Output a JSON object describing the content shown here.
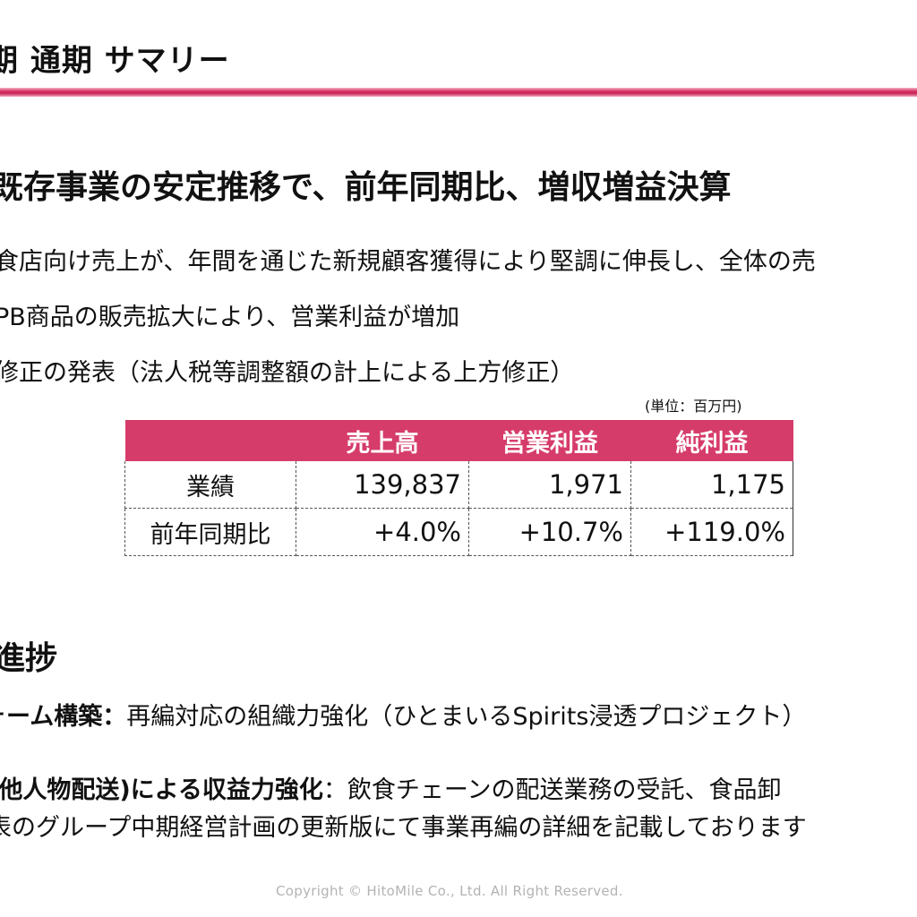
{
  "header": {
    "title": "期 通期 サマリー",
    "rule_color": "#d63c6a"
  },
  "summary": {
    "headline": "既存事業の安定推移で、前年同期比、増収増益決算",
    "bullets": [
      "食店向け売上が、年間を通じた新規顧客獲得により堅調に伸長し、全体の売",
      "PB商品の販売拡大により、営業利益が増加",
      "修正の発表（法人税等調整額の計上による上方修正）"
    ]
  },
  "results_table": {
    "unit_note": "(単位：百万円)",
    "header_color": "#d63c6a",
    "columns": [
      "",
      "売上高",
      "営業利益",
      "純利益"
    ],
    "rows": [
      {
        "label": "業績",
        "values": [
          "139,837",
          "1,971",
          "1,175"
        ]
      },
      {
        "label": "前年同期比",
        "values": [
          "+4.0%",
          "+10.7%",
          "+119.0%"
        ]
      }
    ]
  },
  "progress": {
    "title": "進捗",
    "items": [
      {
        "heading": "ォーム構築：",
        "text": "再編対応の組織力強化（ひとまいるSpirits浸透プロジェクト）"
      },
      {
        "heading": "(他人物配送)による収益力強化",
        "text": "：飲食チェーンの配送業務の受託、食品卸"
      }
    ],
    "note": "表のグループ中期経営計画の更新版にて事業再編の詳細を記載しております"
  },
  "footer": {
    "copyright": "Copyright © HitoMile Co., Ltd. All Right Reserved."
  }
}
